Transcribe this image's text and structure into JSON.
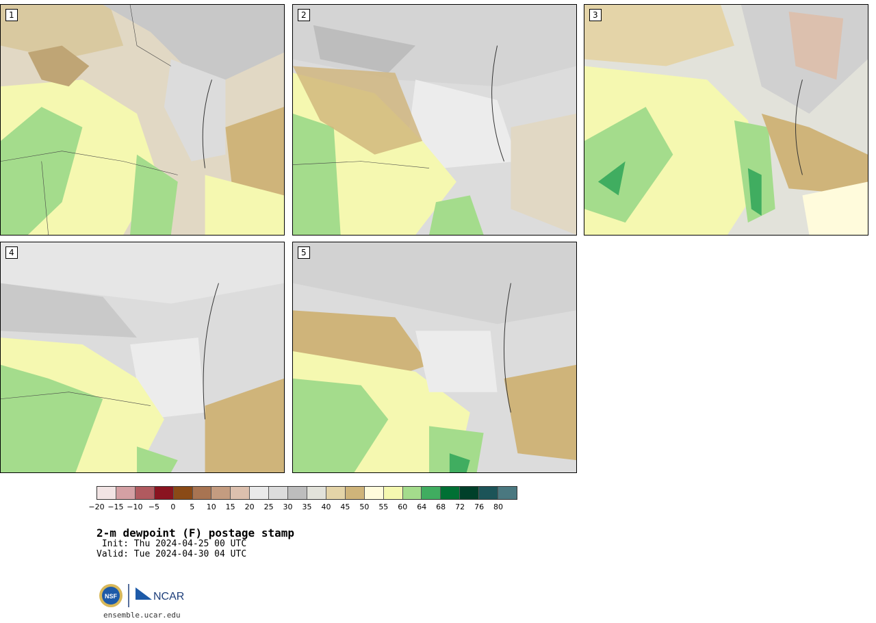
{
  "panels": [
    {
      "label": "1"
    },
    {
      "label": "2"
    },
    {
      "label": "3"
    },
    {
      "label": "4"
    },
    {
      "label": "5"
    }
  ],
  "colorbar": {
    "colors": [
      "#f2e4e4",
      "#d4a0a4",
      "#b05a5f",
      "#8a1420",
      "#8a4a16",
      "#a87452",
      "#c49c80",
      "#dcc0ae",
      "#eaeaea",
      "#dcdcdc",
      "#bdbdbd",
      "#e2e2da",
      "#e4d4a8",
      "#cfb47a",
      "#fffbdc",
      "#f5f8b0",
      "#a4dc8c",
      "#40ad60",
      "#007034",
      "#00402a",
      "#1c5458",
      "#4a7880"
    ],
    "ticks": [
      "−20",
      "−15",
      "−10",
      "−5",
      "0",
      "5",
      "10",
      "15",
      "20",
      "25",
      "30",
      "35",
      "40",
      "45",
      "50",
      "55",
      "60",
      "64",
      "68",
      "72",
      "76",
      "80"
    ]
  },
  "title": "2-m dewpoint (F) postage stamp",
  "init": " Init: Thu 2024-04-25 00 UTC",
  "valid": "Valid: Tue 2024-04-30 04 UTC",
  "logos": {
    "nsf": "NSF",
    "ncar": "NCAR"
  },
  "website": "ensemble.ucar.edu"
}
